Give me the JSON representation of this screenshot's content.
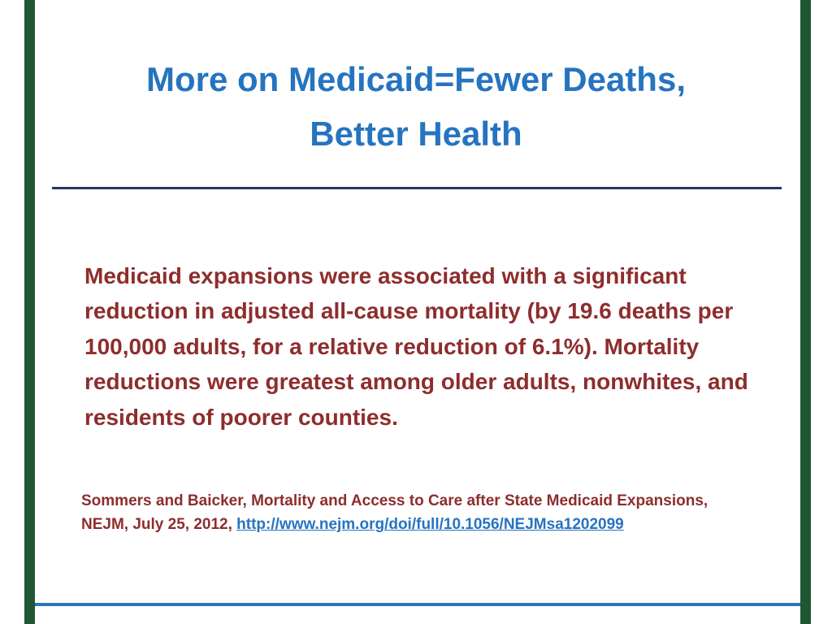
{
  "colors": {
    "title": "#2674C0",
    "bodycolor": "#8E2D2D",
    "link": "#2674C0",
    "border": "#1F5734",
    "divider": "#203864",
    "bottomline": "#2E75B6"
  },
  "slide": {
    "title_line1": "More on Medicaid=Fewer Deaths,",
    "title_line2": "Better Health",
    "body": "Medicaid expansions were associated with a significant reduction in adjusted all-cause mortality (by 19.6 deaths per 100,000 adults, for a relative reduction of 6.1%). Mortality reductions were greatest among older adults, nonwhites, and residents of poorer counties.",
    "citation_line1": "Sommers and Baicker, Mortality and Access to Care after State Medicaid Expansions,",
    "citation_line2_prefix": "NEJM, July 25, 2012, ",
    "citation_link": "http://www.nejm.org/doi/full/10.1056/NEJMsa1202099"
  }
}
